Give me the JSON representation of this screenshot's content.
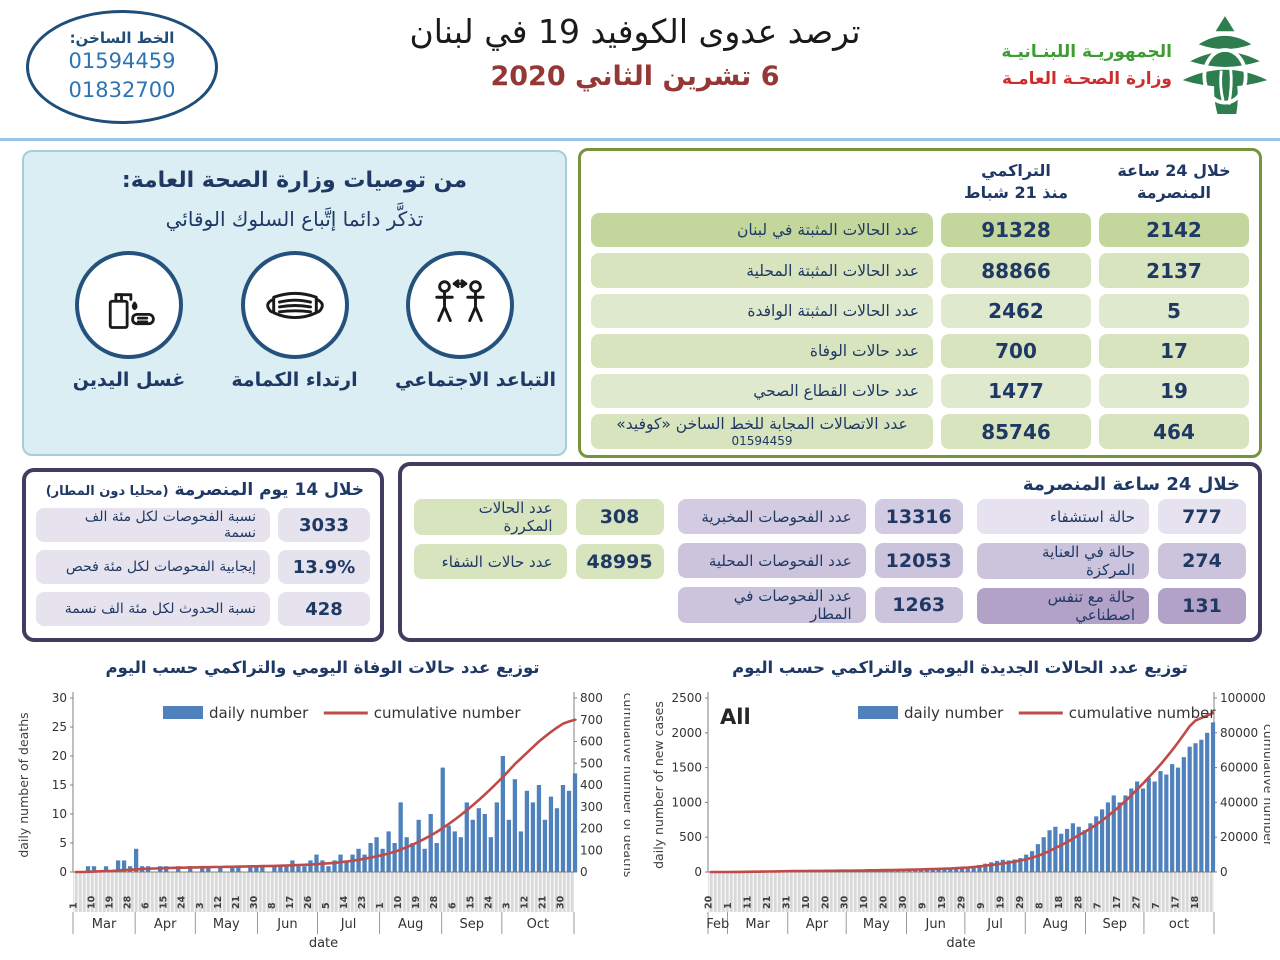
{
  "colors": {
    "navy_text": "#1f3864",
    "hotline_blue": "#2e74b5",
    "date_red": "#953735",
    "ministry_green": "#3f9c35",
    "ministry_red": "#cc2e2e",
    "olive_border": "#77933c",
    "purple_border": "#453a5f",
    "green_cell_dark": "#c3d69b",
    "green_cell": "#d7e4bd",
    "lavender_light": "#e6e2ef",
    "lavender_mid": "#ccc4dc",
    "lavender_dark": "#b3a2c7",
    "reco_bg": "#daeef3",
    "bar_blue": "#4f81bd",
    "line_red": "#be4b48"
  },
  "header": {
    "hotline_label": "الخط الساخن:",
    "hotline_numbers": [
      "01594459",
      "01832700"
    ],
    "title": "ترصد عدوى الكوفيد 19 في لبنان",
    "date": "6 تشرين الثاني 2020",
    "ministry_line1": "الجمهوريـة اللبنـانيـة",
    "ministry_line2": "وزارة الصحـة العامـة"
  },
  "recommendations": {
    "title": "من توصيات وزارة الصحة العامة:",
    "subtitle": "تذكَّر دائما إتَّباع السلوك الوقائي",
    "items": [
      {
        "icon": "handwash-icon",
        "label": "غسل اليدين"
      },
      {
        "icon": "mask-icon",
        "label": "ارتداء الكمامة"
      },
      {
        "icon": "distancing-icon",
        "label": "التباعد الاجتماعي"
      }
    ]
  },
  "stats_table": {
    "header_24h_line1": "خلال 24 ساعة",
    "header_24h_line2": "المنصرمة",
    "header_cum_line1": "التراكمي",
    "header_cum_line2": "منذ 21 شباط",
    "rows": [
      {
        "label": "عدد الحالات المثبتة في لبنان",
        "cumulative": "91328",
        "last24": "2142"
      },
      {
        "label": "عدد الحالات المثبتة المحلية",
        "cumulative": "88866",
        "last24": "2137"
      },
      {
        "label": "عدد الحالات المثبتة الوافدة",
        "cumulative": "2462",
        "last24": "5"
      },
      {
        "label": "عدد حالات الوفاة",
        "cumulative": "700",
        "last24": "17"
      },
      {
        "label": "عدد حالات القطاع الصحي",
        "cumulative": "1477",
        "last24": "19"
      },
      {
        "label": "عدد الاتصالات المجابة  للخط الساخن «كوفيد»",
        "note": "01594459",
        "cumulative": "85746",
        "last24": "464"
      }
    ]
  },
  "fourteen_day": {
    "title_main": "خلال 14 يوم المنصرمة",
    "title_note": "(محليا دون المطار)",
    "rows": [
      {
        "label": "نسبة الفحوصات لكل مئة الف نسمة",
        "value": "3033"
      },
      {
        "label": "إيجابية الفحوصات لكل مئة فحص",
        "value": "13.9%"
      },
      {
        "label": "نسبة الحدوث لكل مئة الف نسمة",
        "value": "428"
      }
    ]
  },
  "last24_box": {
    "title": "خلال 24 ساعة المنصرمة",
    "col1": [
      {
        "label": "حالة استشفاء",
        "value": "777"
      },
      {
        "label": "حالة في العناية المركزة",
        "value": "274"
      },
      {
        "label": "حالة مع تنفس اصطناعي",
        "value": "131"
      }
    ],
    "col2": [
      {
        "label": "عدد الفحوصات المخبرية",
        "value": "13316"
      },
      {
        "label": "عدد الفحوصات المحلية",
        "value": "12053"
      },
      {
        "label": "عدد الفحوصات في المطار",
        "value": "1263"
      }
    ],
    "col3": [
      {
        "label": "عدد الحالات المكررة",
        "value": "308"
      },
      {
        "label": "عدد حالات الشفاء",
        "value": "48995"
      }
    ]
  },
  "chart_data": [
    {
      "name": "deaths-chart",
      "type": "bar+line",
      "title": "توزيع عدد حالات  الوفاة اليومي والتراكمي حسب اليوم",
      "corner_label": "",
      "legend": {
        "daily": "daily number",
        "cumulative": "cumulative number"
      },
      "xlabel": "date",
      "ylabel_left": "daily number of deaths",
      "ylabel_right": "cumulative number of deaths",
      "ylim_left": [
        0,
        30
      ],
      "ytick_step_left": 5,
      "ylim_right": [
        0,
        800
      ],
      "ytick_step_right": 100,
      "span_days": 250,
      "sample_days": 3,
      "bar_color": "#4f81bd",
      "line_color": "#be4b48",
      "x_ticks": {
        "spacing_days": 9,
        "labels": [
          "1",
          "10",
          "19",
          "28",
          "6",
          "15",
          "24",
          "3",
          "12",
          "21",
          "30",
          "8",
          "17",
          "26",
          "5",
          "14",
          "23",
          "1",
          "10",
          "19",
          "28",
          "6",
          "15",
          "24",
          "3",
          "12",
          "21",
          "30"
        ]
      },
      "months": [
        {
          "label": "Mar",
          "start_day": 0
        },
        {
          "label": "Apr",
          "start_day": 31
        },
        {
          "label": "May",
          "start_day": 61
        },
        {
          "label": "Jun",
          "start_day": 92
        },
        {
          "label": "Jul",
          "start_day": 122
        },
        {
          "label": "Aug",
          "start_day": 153
        },
        {
          "label": "Sep",
          "start_day": 184
        },
        {
          "label": "Oct",
          "start_day": 214
        }
      ],
      "daily": [
        0,
        0,
        1,
        1,
        0,
        1,
        0,
        2,
        2,
        1,
        4,
        1,
        1,
        0,
        1,
        1,
        0,
        1,
        0,
        1,
        0,
        1,
        1,
        0,
        1,
        0,
        1,
        1,
        0,
        1,
        1,
        1,
        0,
        1,
        1,
        1,
        2,
        1,
        1,
        2,
        3,
        2,
        1,
        2,
        3,
        2,
        3,
        4,
        3,
        5,
        6,
        4,
        7,
        5,
        12,
        6,
        5,
        9,
        4,
        10,
        5,
        18,
        8,
        7,
        6,
        12,
        9,
        11,
        10,
        6,
        12,
        20,
        9,
        16,
        7,
        14,
        12,
        15,
        9,
        13,
        11,
        15,
        14,
        17
      ],
      "cumulative": [
        0,
        0,
        1,
        2,
        3,
        4,
        5,
        7,
        9,
        10,
        12,
        14,
        15,
        16,
        17,
        18,
        19,
        20,
        20,
        21,
        21,
        22,
        22,
        23,
        23,
        24,
        24,
        25,
        25,
        26,
        26,
        27,
        27,
        28,
        29,
        30,
        31,
        32,
        33,
        34,
        36,
        38,
        40,
        42,
        45,
        48,
        52,
        56,
        61,
        66,
        72,
        78,
        85,
        93,
        103,
        114,
        126,
        139,
        153,
        168,
        184,
        202,
        221,
        241,
        262,
        284,
        307,
        331,
        356,
        382,
        409,
        437,
        466,
        496,
        522,
        548,
        574,
        600,
        622,
        644,
        664,
        682,
        692,
        700
      ]
    },
    {
      "name": "new-cases-chart",
      "type": "bar+line",
      "title": "توزيع عدد الحالات الجديدة اليومي والتراكمي حسب اليوم",
      "corner_label": "All",
      "legend": {
        "daily": "daily number",
        "cumulative": "cumulative number"
      },
      "xlabel": "date",
      "ylabel_left": "daily number of new cases",
      "ylabel_right": "cumulative number",
      "ylim_left": [
        0,
        2500
      ],
      "ytick_step_left": 500,
      "ylim_right": [
        0,
        100000
      ],
      "ytick_step_right": 20000,
      "span_days": 260,
      "sample_days": 3,
      "bar_color": "#4f81bd",
      "line_color": "#be4b48",
      "x_ticks": {
        "spacing_days": 10,
        "labels": [
          "20",
          "1",
          "11",
          "21",
          "31",
          "10",
          "20",
          "30",
          "10",
          "20",
          "30",
          "9",
          "19",
          "29",
          "9",
          "19",
          "29",
          "8",
          "18",
          "28",
          "7",
          "17",
          "27",
          "7",
          "17",
          "18"
        ]
      },
      "months": [
        {
          "label": "Feb",
          "start_day": 0
        },
        {
          "label": "Mar",
          "start_day": 10
        },
        {
          "label": "Apr",
          "start_day": 41
        },
        {
          "label": "May",
          "start_day": 71
        },
        {
          "label": "Jun",
          "start_day": 102
        },
        {
          "label": "Jul",
          "start_day": 132
        },
        {
          "label": "Aug",
          "start_day": 163
        },
        {
          "label": "Sep",
          "start_day": 194
        },
        {
          "label": "oct",
          "start_day": 224
        }
      ],
      "daily": [
        1,
        2,
        2,
        3,
        5,
        8,
        10,
        12,
        15,
        12,
        10,
        14,
        16,
        12,
        10,
        12,
        8,
        15,
        10,
        12,
        9,
        11,
        13,
        10,
        8,
        12,
        25,
        30,
        20,
        15,
        18,
        22,
        16,
        12,
        15,
        20,
        25,
        30,
        35,
        40,
        45,
        50,
        55,
        60,
        65,
        80,
        100,
        120,
        140,
        160,
        175,
        166,
        180,
        200,
        250,
        300,
        400,
        500,
        600,
        650,
        550,
        620,
        700,
        650,
        600,
        700,
        800,
        900,
        1000,
        1100,
        1000,
        1100,
        1200,
        1300,
        1200,
        1350,
        1300,
        1450,
        1400,
        1550,
        1500,
        1650,
        1800,
        1850,
        1900,
        2000,
        2150
      ],
      "cumulative": [
        1,
        4,
        8,
        13,
        30,
        60,
        100,
        150,
        200,
        250,
        300,
        370,
        420,
        470,
        510,
        550,
        580,
        610,
        640,
        660,
        680,
        700,
        720,
        740,
        760,
        790,
        850,
        950,
        1000,
        1050,
        1100,
        1150,
        1200,
        1250,
        1300,
        1400,
        1500,
        1600,
        1700,
        1800,
        1900,
        2000,
        2200,
        2400,
        2600,
        2900,
        3200,
        3600,
        4000,
        4400,
        4900,
        5400,
        6000,
        6600,
        7300,
        8200,
        9300,
        10600,
        12100,
        13800,
        15400,
        17200,
        19200,
        21200,
        23000,
        25000,
        27200,
        29600,
        32200,
        35000,
        37800,
        40800,
        44000,
        47400,
        50800,
        54400,
        58000,
        61800,
        65800,
        70000,
        74400,
        79000,
        83800,
        87000,
        88500,
        90000,
        91328
      ]
    }
  ]
}
